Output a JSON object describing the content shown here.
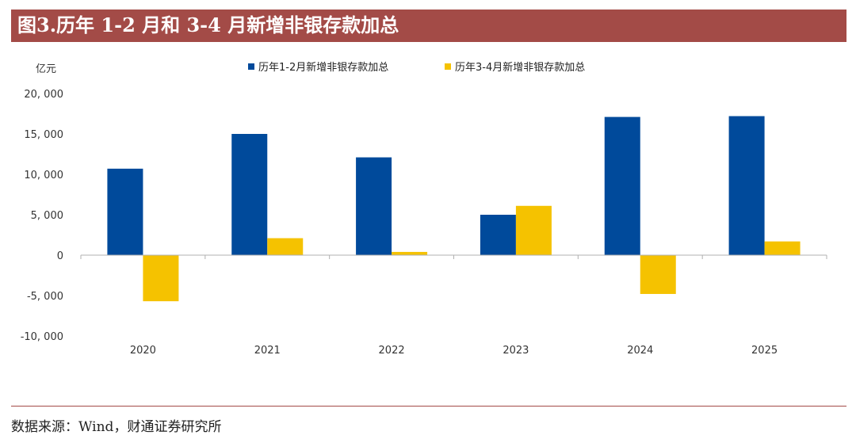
{
  "title": "图3.历年 1-2 月和 3-4 月新增非银存款加总",
  "source": "数据来源：Wind，财通证券研究所",
  "chart_data": {
    "type": "bar",
    "ylabel": "亿元",
    "categories": [
      "2020",
      "2021",
      "2022",
      "2023",
      "2024",
      "2025"
    ],
    "series": [
      {
        "name": "历年1-2月新增非银存款加总",
        "color": "#004a9b",
        "values": [
          10700,
          15000,
          12100,
          5000,
          17100,
          17200
        ]
      },
      {
        "name": "历年3-4月新增非银存款加总",
        "color": "#f5c200",
        "values": [
          -5700,
          2100,
          400,
          6100,
          -4800,
          1700
        ]
      }
    ],
    "ylim": [
      -10000,
      20000
    ],
    "yticks": [
      20000,
      15000,
      10000,
      5000,
      0,
      -5000,
      -10000
    ],
    "ytick_labels": [
      "20, 000",
      "15, 000",
      "10, 000",
      "5, 000",
      "0",
      "-5, 000",
      "-10, 000"
    ],
    "legend_position": "top-center",
    "grid": false
  }
}
